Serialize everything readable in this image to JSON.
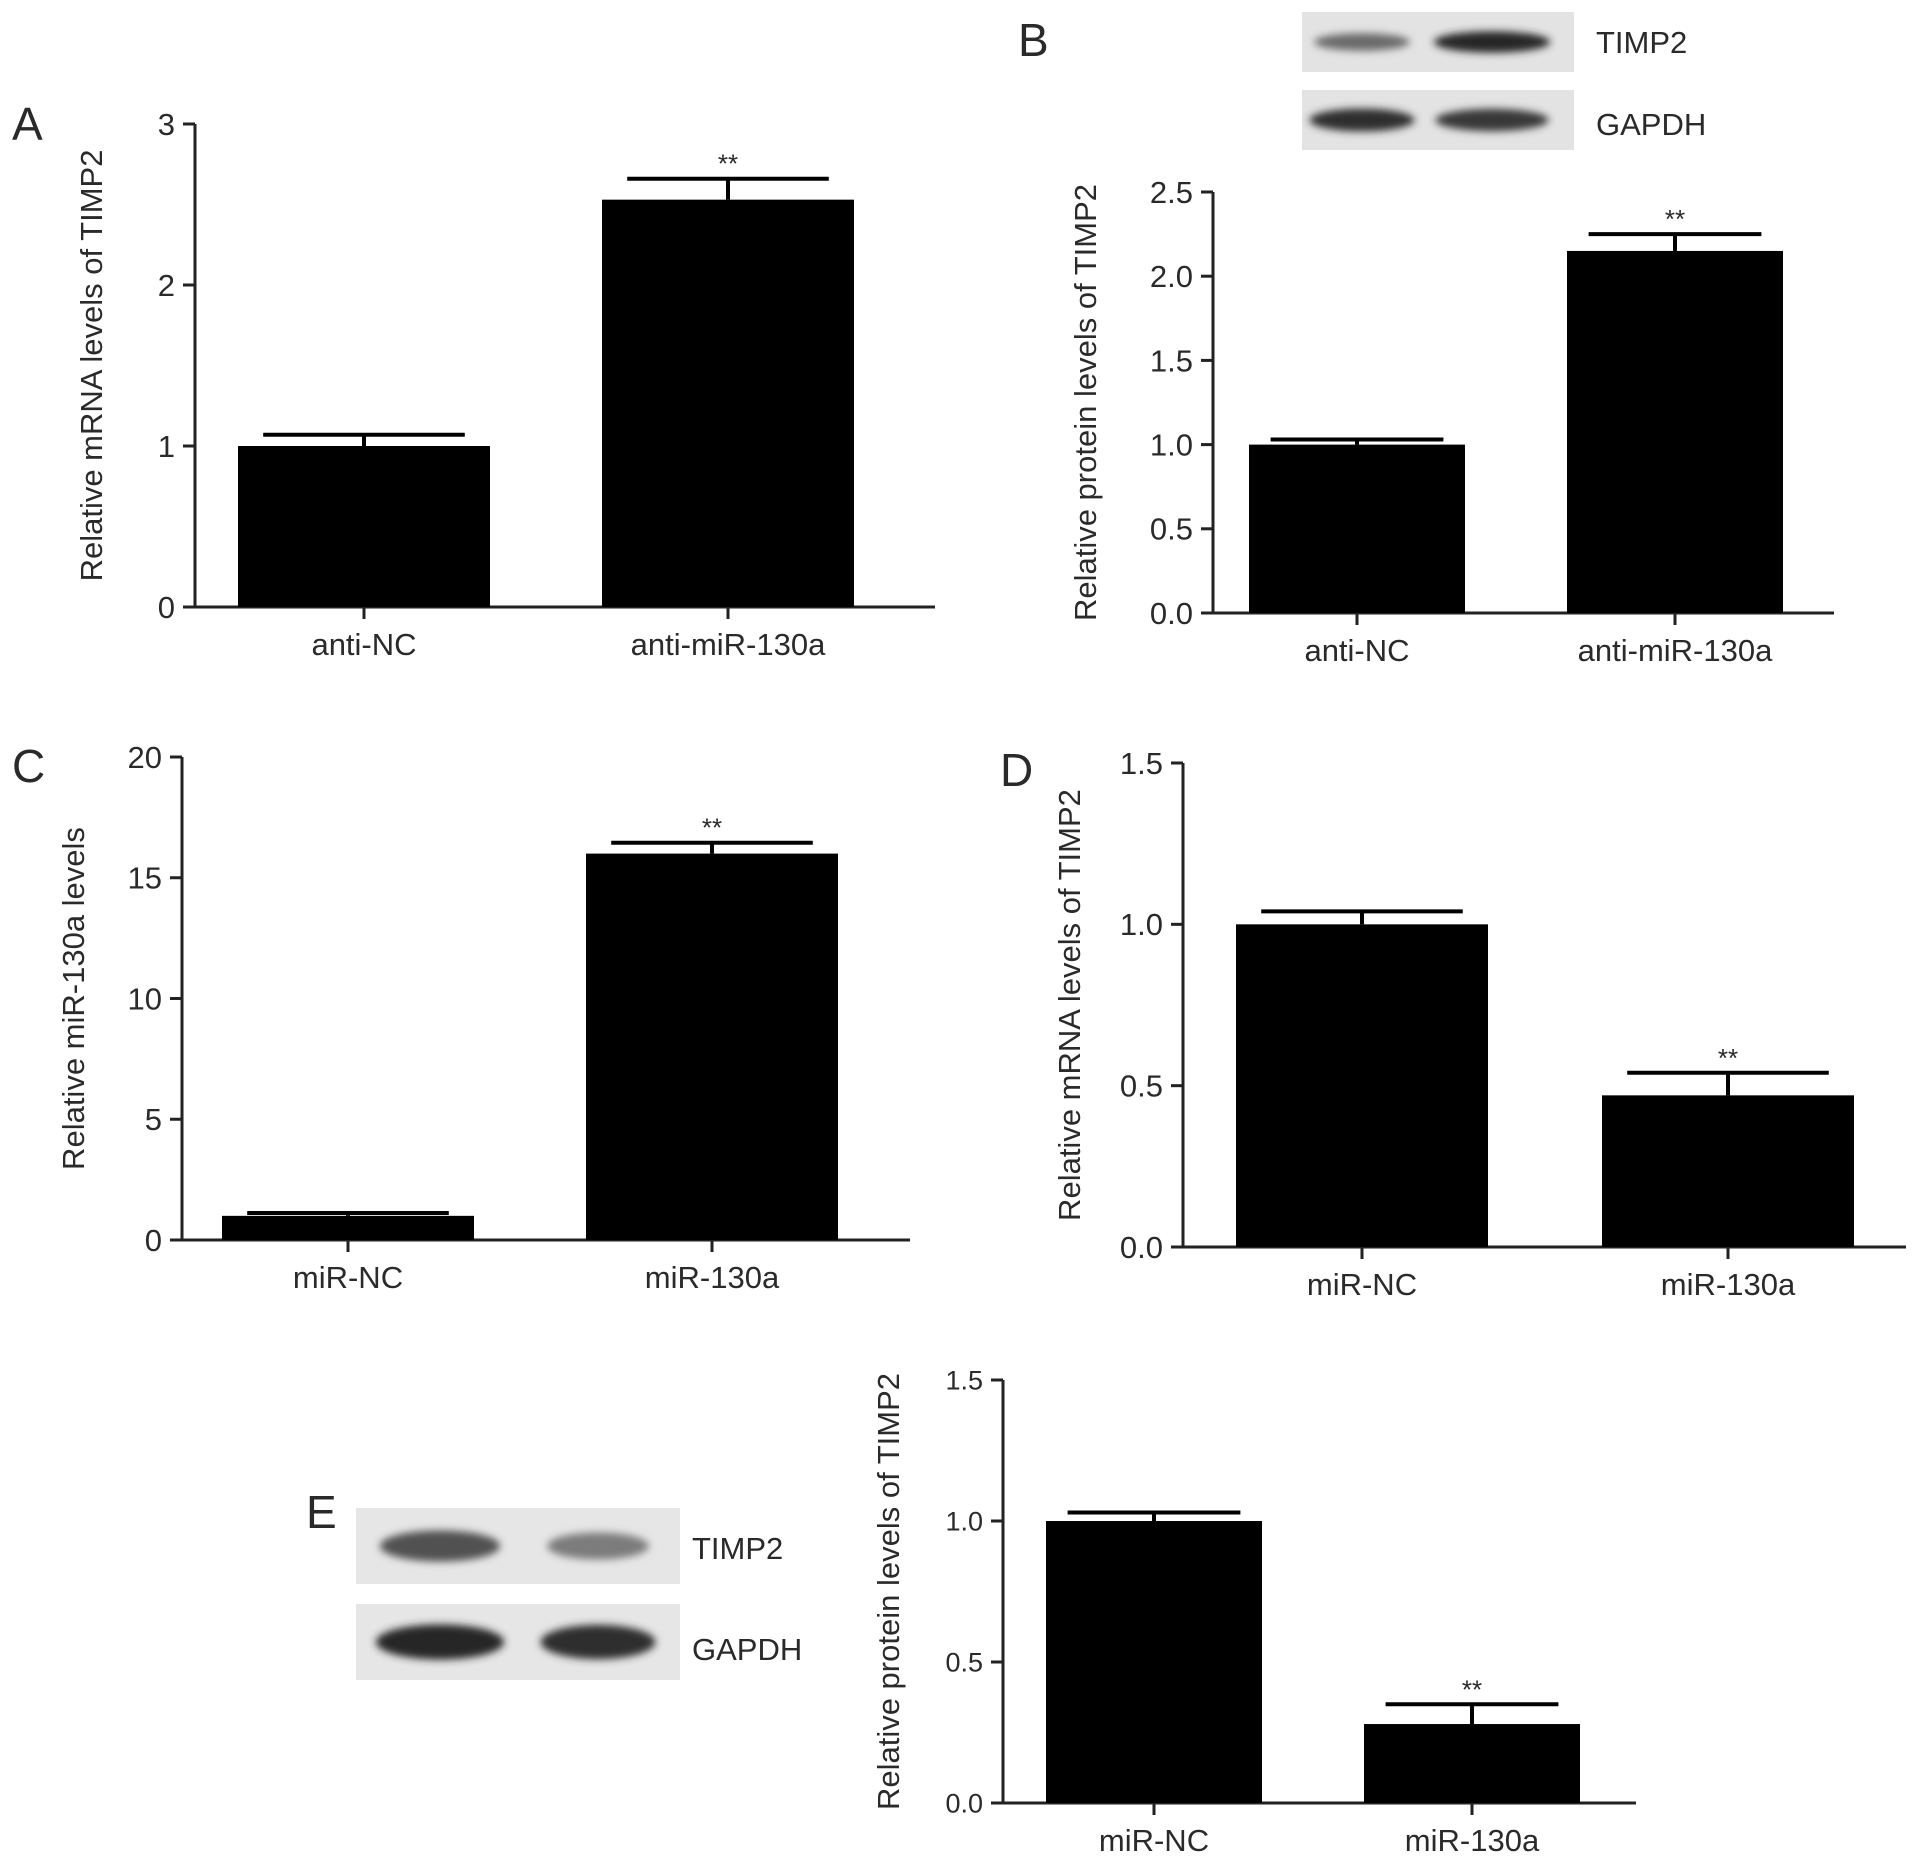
{
  "panels": [
    {
      "letter": "A",
      "blot": null
    },
    {
      "letter": "B",
      "blot": {
        "bands": [
          {
            "label": "TIMP2",
            "intensities": [
              0.55,
              0.95
            ]
          },
          {
            "label": "GAPDH",
            "intensities": [
              0.9,
              0.85
            ]
          }
        ]
      }
    },
    {
      "letter": "C",
      "blot": null
    },
    {
      "letter": "D",
      "blot": null
    },
    {
      "letter": "E",
      "blot": {
        "bands": [
          {
            "label": "TIMP2",
            "intensities": [
              0.7,
              0.45
            ]
          },
          {
            "label": "GAPDH",
            "intensities": [
              0.95,
              0.9
            ]
          }
        ]
      }
    }
  ],
  "chart_data": [
    {
      "type": "bar",
      "panel": "A",
      "categories": [
        "anti-NC",
        "anti-miR-130a"
      ],
      "values": [
        1.0,
        2.53
      ],
      "errors": [
        0.07,
        0.13
      ],
      "significance": [
        "",
        "**"
      ],
      "ylabel": "Relative mRNA levels of TIMP2",
      "ylim": [
        0,
        3
      ],
      "yticks": [
        "0",
        "1",
        "2",
        "3"
      ]
    },
    {
      "type": "bar",
      "panel": "B",
      "categories": [
        "anti-NC",
        "anti-miR-130a"
      ],
      "values": [
        1.0,
        2.15
      ],
      "errors": [
        0.03,
        0.1
      ],
      "significance": [
        "",
        "**"
      ],
      "ylabel": "Relative protein levels of TIMP2",
      "ylim": [
        0,
        2.5
      ],
      "yticks": [
        "0.0",
        "0.5",
        "1.0",
        "1.5",
        "2.0",
        "2.5"
      ]
    },
    {
      "type": "bar",
      "panel": "C",
      "categories": [
        "miR-NC",
        "miR-130a"
      ],
      "values": [
        1.0,
        16.0
      ],
      "errors": [
        0.12,
        0.45
      ],
      "significance": [
        "",
        "**"
      ],
      "ylabel": "Relative miR-130a levels",
      "ylim": [
        0,
        20
      ],
      "yticks": [
        "0",
        "5",
        "10",
        "15",
        "20"
      ]
    },
    {
      "type": "bar",
      "panel": "D",
      "categories": [
        "miR-NC",
        "miR-130a"
      ],
      "values": [
        1.0,
        0.47
      ],
      "errors": [
        0.04,
        0.07
      ],
      "significance": [
        "",
        "**"
      ],
      "ylabel": "Relative mRNA levels of TIMP2",
      "ylim": [
        0,
        1.5
      ],
      "yticks": [
        "0.0",
        "0.5",
        "1.0",
        "1.5"
      ]
    },
    {
      "type": "bar",
      "panel": "E",
      "categories": [
        "miR-NC",
        "miR-130a"
      ],
      "values": [
        1.0,
        0.28
      ],
      "errors": [
        0.03,
        0.07
      ],
      "significance": [
        "",
        "**"
      ],
      "ylabel": "Relative protein levels of TIMP2",
      "ylim": [
        0,
        1.5
      ],
      "yticks": [
        "0.0",
        "0.5",
        "1.0",
        "1.5"
      ]
    }
  ]
}
